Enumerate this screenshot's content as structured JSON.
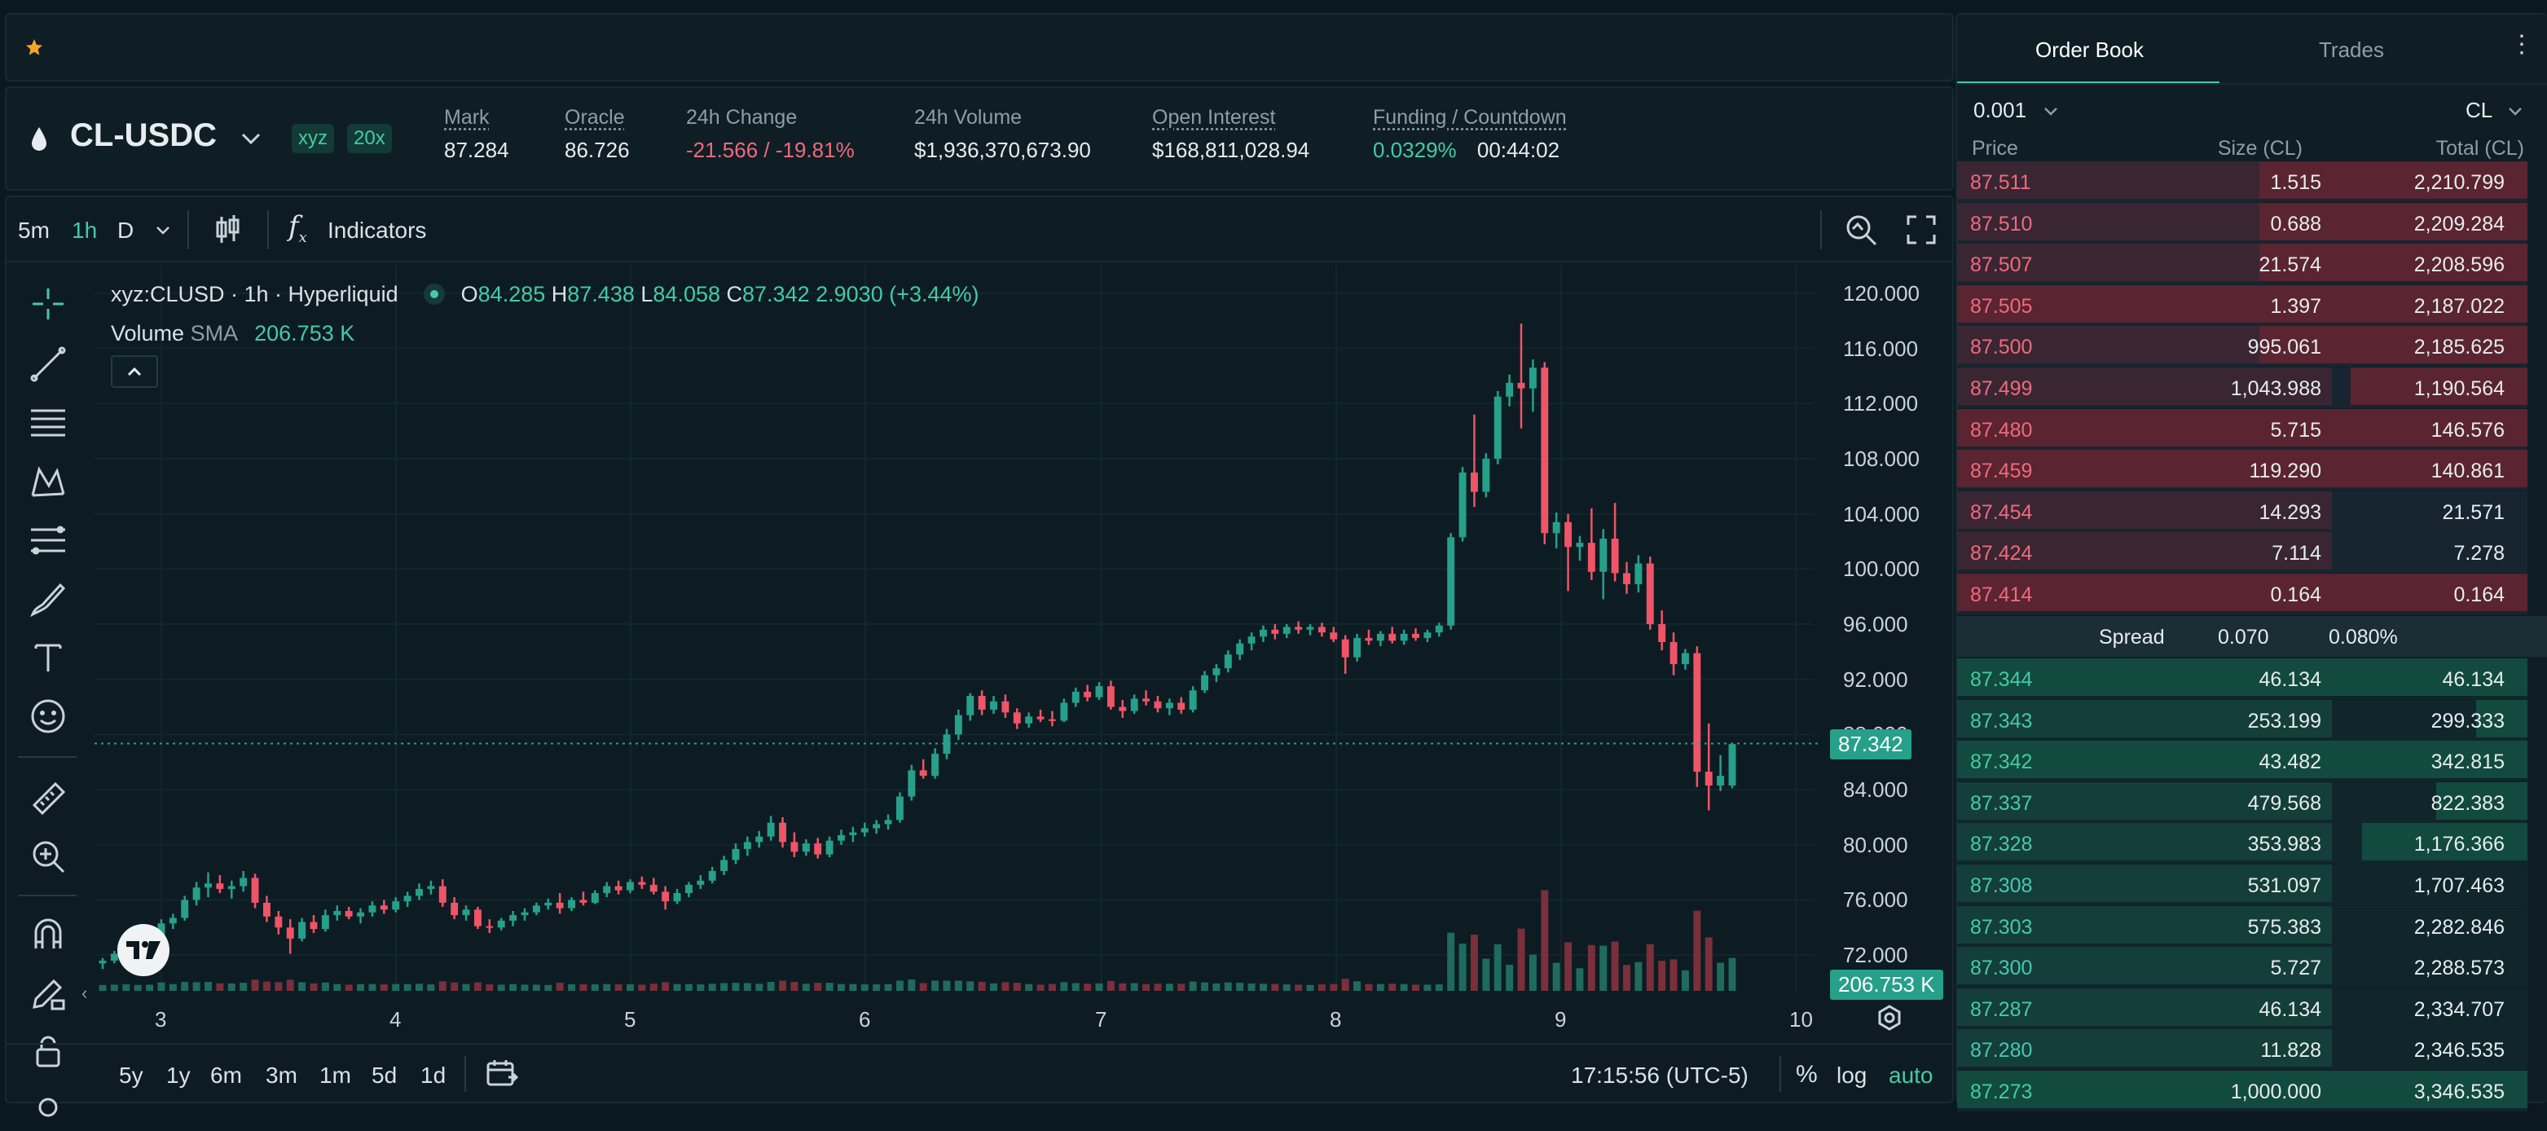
{
  "top_bar": {
    "star_icon": "star-icon"
  },
  "header": {
    "pair": "CL-USDC",
    "badge_dex": "xyz",
    "badge_leverage": "20x",
    "stats": [
      {
        "label": "Mark",
        "value": "87.284"
      },
      {
        "label": "Oracle",
        "value": "86.726"
      },
      {
        "label": "24h Change",
        "value": "-21.566 / -19.81%"
      },
      {
        "label": "24h Volume",
        "value": "$1,936,370,673.90"
      },
      {
        "label": "Open Interest",
        "value": "$168,811,028.94"
      },
      {
        "label": "Funding / Countdown",
        "value": "0.0329%",
        "value2": "00:44:02"
      }
    ]
  },
  "chart_toolbar": {
    "tf_5m": "5m",
    "tf_1h": "1h",
    "tf_d": "D",
    "indicators": "Indicators",
    "fx": "f"
  },
  "legend": {
    "symbol": "xyz:CLUSD · 1h · Hyperliquid",
    "o_label": "O",
    "o": "84.285",
    "h_label": "H",
    "h": "87.438",
    "l_label": "L",
    "l": "84.058",
    "c_label": "C",
    "c": "87.342",
    "change": "2.9030 (+3.44%)",
    "volume_label": "Volume",
    "sma_label": "SMA",
    "volume_value": "206.753 K"
  },
  "price_axis": [
    "120.000",
    "116.000",
    "112.000",
    "108.000",
    "104.000",
    "100.000",
    "96.000",
    "92.000",
    "88.000",
    "84.000",
    "80.000",
    "76.000",
    "72.000"
  ],
  "last_price_tag": "87.342",
  "volume_tag": "206.753 K",
  "time_axis": [
    "3",
    "4",
    "5",
    "6",
    "7",
    "8",
    "9",
    "10"
  ],
  "bottom_bar": {
    "ranges": [
      "5y",
      "1y",
      "6m",
      "3m",
      "1m",
      "5d",
      "1d"
    ],
    "clock": "17:15:56 (UTC-5)",
    "pct": "%",
    "log": "log",
    "auto": "auto"
  },
  "order_book": {
    "tab_orderbook": "Order Book",
    "tab_trades": "Trades",
    "tick": "0.001",
    "unit": "CL",
    "col_price": "Price",
    "col_size": "Size (CL)",
    "col_total": "Total (CL)",
    "asks": [
      {
        "price": "87.511",
        "size": "1.515",
        "total": "2,210.799",
        "depth": 0.47
      },
      {
        "price": "87.510",
        "size": "0.688",
        "total": "2,209.284",
        "depth": 0.47
      },
      {
        "price": "87.507",
        "size": "21.574",
        "total": "2,208.596",
        "depth": 0.47
      },
      {
        "price": "87.505",
        "size": "1.397",
        "total": "2,187.022",
        "depth": 1.0
      },
      {
        "price": "87.500",
        "size": "995.061",
        "total": "2,185.625",
        "depth": 0.47
      },
      {
        "price": "87.499",
        "size": "1,043.988",
        "total": "1,190.564",
        "depth": 0.31
      },
      {
        "price": "87.480",
        "size": "5.715",
        "total": "146.576",
        "depth": 1.0
      },
      {
        "price": "87.459",
        "size": "119.290",
        "total": "140.861",
        "depth": 1.0
      },
      {
        "price": "87.454",
        "size": "14.293",
        "total": "21.571",
        "depth": 0.0
      },
      {
        "price": "87.424",
        "size": "7.114",
        "total": "7.278",
        "depth": 0.0
      },
      {
        "price": "87.414",
        "size": "0.164",
        "total": "0.164",
        "depth": 1.0
      }
    ],
    "spread_label": "Spread",
    "spread_value": "0.070",
    "spread_pct": "0.080%",
    "bids": [
      {
        "price": "87.344",
        "size": "46.134",
        "total": "46.134",
        "depth": 1.0
      },
      {
        "price": "87.343",
        "size": "253.199",
        "total": "299.333",
        "depth": 0.09
      },
      {
        "price": "87.342",
        "size": "43.482",
        "total": "342.815",
        "depth": 1.0
      },
      {
        "price": "87.337",
        "size": "479.568",
        "total": "822.383",
        "depth": 0.16
      },
      {
        "price": "87.328",
        "size": "353.983",
        "total": "1,176.366",
        "depth": 0.29
      },
      {
        "price": "87.308",
        "size": "531.097",
        "total": "1,707.463",
        "depth": 0.0
      },
      {
        "price": "87.303",
        "size": "575.383",
        "total": "2,282.846",
        "depth": 0.0
      },
      {
        "price": "87.300",
        "size": "5.727",
        "total": "2,288.573",
        "depth": 0.0
      },
      {
        "price": "87.287",
        "size": "46.134",
        "total": "2,334.707",
        "depth": 0.0
      },
      {
        "price": "87.280",
        "size": "11.828",
        "total": "2,346.535",
        "depth": 0.0
      },
      {
        "price": "87.273",
        "size": "1,000.000",
        "total": "3,346.535",
        "depth": 1.0
      }
    ]
  },
  "chart_data": {
    "type": "candlestick",
    "y_range": [
      70,
      122
    ],
    "x_ticks": [
      "3",
      "4",
      "5",
      "6",
      "7",
      "8",
      "9",
      "10"
    ],
    "candles": [
      [
        71.4,
        71.8,
        71.0,
        71.6
      ],
      [
        71.6,
        72.3,
        71.4,
        72.1
      ],
      [
        72.1,
        72.8,
        71.8,
        72.5
      ],
      [
        72.5,
        73.1,
        72.3,
        72.9
      ],
      [
        72.9,
        73.5,
        72.6,
        73.2
      ],
      [
        73.2,
        74.6,
        73.0,
        74.3
      ],
      [
        74.3,
        75.0,
        73.9,
        74.7
      ],
      [
        74.7,
        76.3,
        74.5,
        76.0
      ],
      [
        76.0,
        77.3,
        75.6,
        76.9
      ],
      [
        76.9,
        78.0,
        76.2,
        77.2
      ],
      [
        77.2,
        77.8,
        76.5,
        76.8
      ],
      [
        76.8,
        77.4,
        76.1,
        77.0
      ],
      [
        77.0,
        78.1,
        76.6,
        77.6
      ],
      [
        77.6,
        77.9,
        75.4,
        75.8
      ],
      [
        75.8,
        76.3,
        74.4,
        74.8
      ],
      [
        74.8,
        75.2,
        73.5,
        74.0
      ],
      [
        74.0,
        74.6,
        72.1,
        73.2
      ],
      [
        73.2,
        74.7,
        73.0,
        74.4
      ],
      [
        74.4,
        74.9,
        73.6,
        73.9
      ],
      [
        73.9,
        75.3,
        73.7,
        74.9
      ],
      [
        74.9,
        75.6,
        74.5,
        75.2
      ],
      [
        75.2,
        75.5,
        74.6,
        74.8
      ],
      [
        74.8,
        75.4,
        74.3,
        75.1
      ],
      [
        75.1,
        75.9,
        74.8,
        75.6
      ],
      [
        75.6,
        76.0,
        75.0,
        75.3
      ],
      [
        75.3,
        76.2,
        75.1,
        75.9
      ],
      [
        75.9,
        76.6,
        75.5,
        76.3
      ],
      [
        76.3,
        77.2,
        76.0,
        76.8
      ],
      [
        76.8,
        77.4,
        76.4,
        77.0
      ],
      [
        77.0,
        77.5,
        75.5,
        75.8
      ],
      [
        75.8,
        76.2,
        74.6,
        74.9
      ],
      [
        74.9,
        75.6,
        74.5,
        75.3
      ],
      [
        75.3,
        75.5,
        73.9,
        74.1
      ],
      [
        74.1,
        74.6,
        73.6,
        74.0
      ],
      [
        74.0,
        74.7,
        73.8,
        74.5
      ],
      [
        74.5,
        75.2,
        74.1,
        74.9
      ],
      [
        74.9,
        75.4,
        74.5,
        75.1
      ],
      [
        75.1,
        75.8,
        74.9,
        75.6
      ],
      [
        75.6,
        76.1,
        75.3,
        75.8
      ],
      [
        75.8,
        76.5,
        75.0,
        75.4
      ],
      [
        75.4,
        76.2,
        75.2,
        76.0
      ],
      [
        76.0,
        76.6,
        75.6,
        75.8
      ],
      [
        75.8,
        76.7,
        75.7,
        76.5
      ],
      [
        76.5,
        77.3,
        76.2,
        77.0
      ],
      [
        77.0,
        77.4,
        76.4,
        76.7
      ],
      [
        76.7,
        77.5,
        76.5,
        77.3
      ],
      [
        77.3,
        77.7,
        76.8,
        77.1
      ],
      [
        77.1,
        77.6,
        76.4,
        76.6
      ],
      [
        76.6,
        77.0,
        75.3,
        75.9
      ],
      [
        75.9,
        76.8,
        75.7,
        76.5
      ],
      [
        76.5,
        77.3,
        76.2,
        77.1
      ],
      [
        77.1,
        77.8,
        76.8,
        77.4
      ],
      [
        77.4,
        78.4,
        77.2,
        78.1
      ],
      [
        78.1,
        79.2,
        77.8,
        78.9
      ],
      [
        78.9,
        80.1,
        78.6,
        79.7
      ],
      [
        79.7,
        80.6,
        79.2,
        80.2
      ],
      [
        80.2,
        81.0,
        79.8,
        80.6
      ],
      [
        80.6,
        82.1,
        80.3,
        81.6
      ],
      [
        81.6,
        82.0,
        79.8,
        80.2
      ],
      [
        80.2,
        80.9,
        79.1,
        79.5
      ],
      [
        79.5,
        80.4,
        79.2,
        80.1
      ],
      [
        80.1,
        80.5,
        79.0,
        79.3
      ],
      [
        79.3,
        80.6,
        79.1,
        80.3
      ],
      [
        80.3,
        81.1,
        80.0,
        80.7
      ],
      [
        80.7,
        81.3,
        80.2,
        80.9
      ],
      [
        80.9,
        81.6,
        80.6,
        81.2
      ],
      [
        81.2,
        81.8,
        80.8,
        81.5
      ],
      [
        81.5,
        82.2,
        81.1,
        81.8
      ],
      [
        81.8,
        83.8,
        81.6,
        83.5
      ],
      [
        83.5,
        85.8,
        83.2,
        85.4
      ],
      [
        85.4,
        86.2,
        84.8,
        85.0
      ],
      [
        85.0,
        87.0,
        84.8,
        86.6
      ],
      [
        86.6,
        88.4,
        86.2,
        88.0
      ],
      [
        88.0,
        89.8,
        87.6,
        89.4
      ],
      [
        89.4,
        91.0,
        89.0,
        90.8
      ],
      [
        90.8,
        91.2,
        89.4,
        89.8
      ],
      [
        89.8,
        90.8,
        89.5,
        90.4
      ],
      [
        90.4,
        90.9,
        89.2,
        89.6
      ],
      [
        89.6,
        89.9,
        88.4,
        88.8
      ],
      [
        88.8,
        89.6,
        88.5,
        89.3
      ],
      [
        89.3,
        89.8,
        88.9,
        89.1
      ],
      [
        89.1,
        89.7,
        88.6,
        89.0
      ],
      [
        89.0,
        90.6,
        88.9,
        90.3
      ],
      [
        90.3,
        91.4,
        90.0,
        91.1
      ],
      [
        91.1,
        91.6,
        90.4,
        90.7
      ],
      [
        90.7,
        91.8,
        90.5,
        91.5
      ],
      [
        91.5,
        91.9,
        89.8,
        90.0
      ],
      [
        90.0,
        90.5,
        89.2,
        89.7
      ],
      [
        89.7,
        90.9,
        89.5,
        90.6
      ],
      [
        90.6,
        91.2,
        90.1,
        90.4
      ],
      [
        90.4,
        90.8,
        89.6,
        89.9
      ],
      [
        89.9,
        90.6,
        89.4,
        90.3
      ],
      [
        90.3,
        90.7,
        89.5,
        89.8
      ],
      [
        89.8,
        91.5,
        89.6,
        91.2
      ],
      [
        91.2,
        92.6,
        91.0,
        92.3
      ],
      [
        92.3,
        93.1,
        91.8,
        92.8
      ],
      [
        92.8,
        94.1,
        92.5,
        93.8
      ],
      [
        93.8,
        94.9,
        93.4,
        94.6
      ],
      [
        94.6,
        95.4,
        94.1,
        95.1
      ],
      [
        95.1,
        95.9,
        94.7,
        95.6
      ],
      [
        95.6,
        96.0,
        94.9,
        95.3
      ],
      [
        95.3,
        96.0,
        95.0,
        95.8
      ],
      [
        95.8,
        96.2,
        95.3,
        95.6
      ],
      [
        95.6,
        96.0,
        95.2,
        95.8
      ],
      [
        95.8,
        96.1,
        95.1,
        95.4
      ],
      [
        95.4,
        95.8,
        94.7,
        94.9
      ],
      [
        94.9,
        95.2,
        92.4,
        93.6
      ],
      [
        93.6,
        95.3,
        93.3,
        95.0
      ],
      [
        95.0,
        95.6,
        94.5,
        94.8
      ],
      [
        94.8,
        95.5,
        94.4,
        95.3
      ],
      [
        95.3,
        95.8,
        94.6,
        94.8
      ],
      [
        94.8,
        95.6,
        94.5,
        95.3
      ],
      [
        95.3,
        95.7,
        94.8,
        95.0
      ],
      [
        95.0,
        95.6,
        94.7,
        95.4
      ],
      [
        95.4,
        96.1,
        95.1,
        95.9
      ],
      [
        95.9,
        102.6,
        95.6,
        102.3
      ],
      [
        102.3,
        107.4,
        102.0,
        107.0
      ],
      [
        107.0,
        111.2,
        104.5,
        105.6
      ],
      [
        105.6,
        108.4,
        105.2,
        108.0
      ],
      [
        108.0,
        112.9,
        107.6,
        112.5
      ],
      [
        112.5,
        114.1,
        111.8,
        113.5
      ],
      [
        113.5,
        117.8,
        110.2,
        113.1
      ],
      [
        113.1,
        115.2,
        111.4,
        114.6
      ],
      [
        114.6,
        115.0,
        101.8,
        102.6
      ],
      [
        102.6,
        104.1,
        101.5,
        103.4
      ],
      [
        103.4,
        104.0,
        98.4,
        101.6
      ],
      [
        101.6,
        102.4,
        100.6,
        101.9
      ],
      [
        101.9,
        104.4,
        99.2,
        99.8
      ],
      [
        99.8,
        102.9,
        97.8,
        102.2
      ],
      [
        102.2,
        104.8,
        99.1,
        99.7
      ],
      [
        99.7,
        100.5,
        98.2,
        98.9
      ],
      [
        98.9,
        101.0,
        98.3,
        100.4
      ],
      [
        100.4,
        100.9,
        95.6,
        96.0
      ],
      [
        96.0,
        97.0,
        94.1,
        94.7
      ],
      [
        94.7,
        95.4,
        92.3,
        93.1
      ],
      [
        93.1,
        94.2,
        92.7,
        93.9
      ],
      [
        93.9,
        94.4,
        84.2,
        85.3
      ],
      [
        85.3,
        88.8,
        82.5,
        84.3
      ],
      [
        84.3,
        86.5,
        83.9,
        85.0
      ],
      [
        84.3,
        87.4,
        84.1,
        87.3
      ]
    ],
    "volume_scale_max": 1000
  }
}
